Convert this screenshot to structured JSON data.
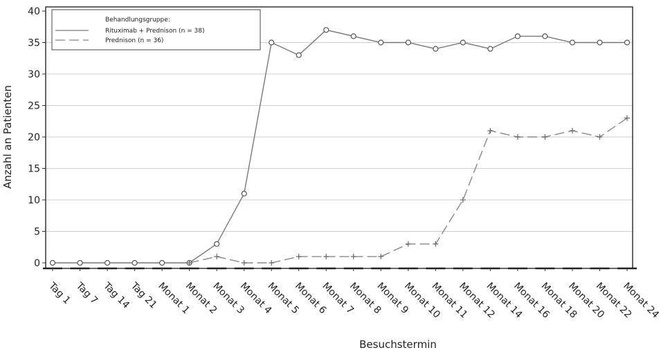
{
  "chart_data": {
    "type": "line",
    "xlabel": "Besuchstermin",
    "ylabel": "Anzahl an Patienten",
    "ylim": [
      0,
      40
    ],
    "yticks": [
      0,
      5,
      10,
      15,
      20,
      25,
      30,
      35,
      40
    ],
    "grid": "horizontal",
    "legend_placement": "top-left",
    "legend_title": "Behandlungsgruppe:",
    "categories": [
      "Tag 1",
      "Tag 7",
      "Tag 14",
      "Tag 21",
      "Monat 1",
      "Monat 2",
      "Monat 3",
      "Monat 4",
      "Monat 5",
      "Monat 6",
      "Monat 7",
      "Monat 8",
      "Monat 9",
      "Monat 10",
      "Monat 11",
      "Monat 12",
      "Monat 14",
      "Monat 16",
      "Monat 18",
      "Monat 20",
      "Monat 22",
      "Monat 24"
    ],
    "series": [
      {
        "name": "Rituximab + Prednison (n = 38)",
        "style": "solid",
        "marker": "circle",
        "color": "#777777",
        "values": [
          0,
          0,
          0,
          0,
          0,
          0,
          3,
          11,
          35,
          33,
          37,
          36,
          35,
          35,
          34,
          35,
          34,
          36,
          36,
          35,
          35,
          35
        ]
      },
      {
        "name": "Prednison (n = 36)",
        "style": "dashed",
        "marker": "plus",
        "color": "#888888",
        "values": [
          null,
          null,
          null,
          null,
          null,
          0,
          1,
          0,
          0,
          1,
          1,
          1,
          1,
          3,
          3,
          10,
          21,
          20,
          20,
          21,
          20,
          23
        ]
      }
    ]
  }
}
